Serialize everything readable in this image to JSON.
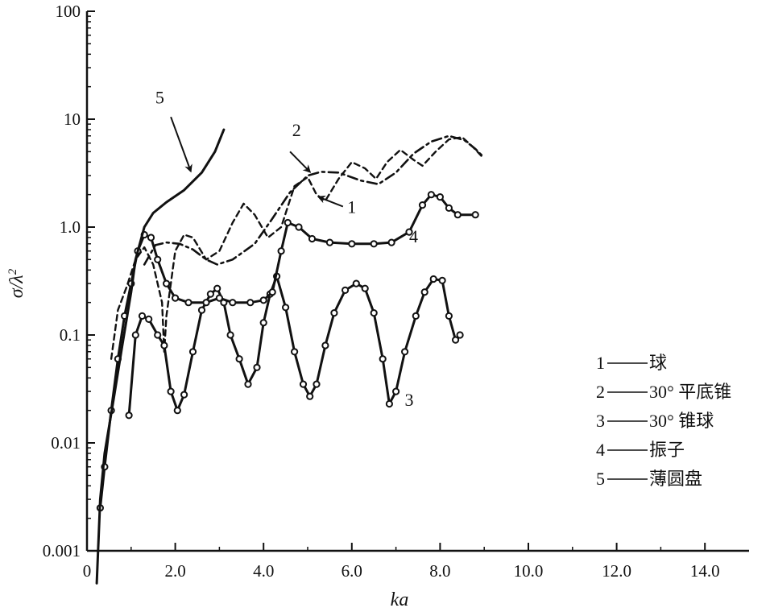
{
  "chart_data": {
    "type": "line",
    "title": "",
    "xlabel": "ka",
    "ylabel": "σ/λ²",
    "xscale": "linear",
    "yscale": "log",
    "xlim": [
      0,
      15
    ],
    "ylim": [
      0.001,
      100
    ],
    "grid": false,
    "x_ticks": [
      0,
      2,
      4,
      6,
      8,
      10,
      12,
      14
    ],
    "x_tick_labels": [
      "0",
      "2.0",
      "4.0",
      "6.0",
      "8.0",
      "10.0",
      "12.0",
      "14.0"
    ],
    "y_ticks": [
      0.001,
      0.01,
      0.1,
      1,
      10,
      100
    ],
    "y_tick_labels": [
      "0.001",
      "0.01",
      "0.1",
      "1.0",
      "10",
      "100"
    ],
    "legend_position": "right",
    "series": [
      {
        "name": "1——球",
        "label": "1",
        "style": "dashed",
        "color": "#111111",
        "points": [
          [
            0.55,
            0.06
          ],
          [
            0.7,
            0.17
          ],
          [
            0.9,
            0.28
          ],
          [
            1.1,
            0.5
          ],
          [
            1.3,
            0.65
          ],
          [
            1.5,
            0.45
          ],
          [
            1.7,
            0.2
          ],
          [
            1.75,
            0.07
          ],
          [
            1.8,
            0.15
          ],
          [
            2.0,
            0.6
          ],
          [
            2.2,
            0.85
          ],
          [
            2.4,
            0.8
          ],
          [
            2.7,
            0.5
          ],
          [
            3.0,
            0.6
          ],
          [
            3.3,
            1.1
          ],
          [
            3.55,
            1.65
          ],
          [
            3.8,
            1.3
          ],
          [
            4.1,
            0.8
          ],
          [
            4.4,
            1.0
          ],
          [
            4.7,
            2.4
          ],
          [
            5.0,
            2.9
          ],
          [
            5.2,
            2.0
          ],
          [
            5.4,
            1.75
          ],
          [
            5.7,
            2.8
          ],
          [
            6.0,
            4.0
          ],
          [
            6.3,
            3.5
          ],
          [
            6.55,
            2.8
          ],
          [
            6.8,
            4.0
          ],
          [
            7.1,
            5.2
          ],
          [
            7.4,
            4.2
          ],
          [
            7.6,
            3.7
          ],
          [
            7.9,
            5.0
          ],
          [
            8.2,
            6.5
          ],
          [
            8.5,
            6.8
          ],
          [
            8.75,
            5.5
          ],
          [
            8.95,
            4.5
          ]
        ]
      },
      {
        "name": "2——30° 平底锥",
        "label": "2",
        "style": "dash-dot",
        "color": "#111111",
        "points": [
          [
            1.3,
            0.45
          ],
          [
            1.55,
            0.68
          ],
          [
            1.8,
            0.72
          ],
          [
            2.1,
            0.7
          ],
          [
            2.4,
            0.62
          ],
          [
            2.7,
            0.5
          ],
          [
            2.95,
            0.45
          ],
          [
            3.3,
            0.5
          ],
          [
            3.8,
            0.7
          ],
          [
            4.2,
            1.2
          ],
          [
            4.6,
            2.1
          ],
          [
            5.0,
            3.0
          ],
          [
            5.3,
            3.25
          ],
          [
            5.7,
            3.2
          ],
          [
            6.2,
            2.7
          ],
          [
            6.6,
            2.5
          ],
          [
            7.0,
            3.2
          ],
          [
            7.4,
            4.8
          ],
          [
            7.8,
            6.2
          ],
          [
            8.2,
            7.0
          ],
          [
            8.55,
            6.4
          ],
          [
            8.8,
            5.3
          ],
          [
            8.95,
            4.6
          ]
        ]
      },
      {
        "name": "3——30° 锥球",
        "label": "3",
        "style": "solid-circles",
        "color": "#111111",
        "points": [
          [
            0.95,
            0.018
          ],
          [
            1.1,
            0.1
          ],
          [
            1.25,
            0.15
          ],
          [
            1.4,
            0.14
          ],
          [
            1.6,
            0.1
          ],
          [
            1.75,
            0.08
          ],
          [
            1.9,
            0.03
          ],
          [
            2.05,
            0.02
          ],
          [
            2.2,
            0.028
          ],
          [
            2.4,
            0.07
          ],
          [
            2.6,
            0.17
          ],
          [
            2.8,
            0.24
          ],
          [
            2.95,
            0.27
          ],
          [
            3.1,
            0.2
          ],
          [
            3.25,
            0.1
          ],
          [
            3.45,
            0.06
          ],
          [
            3.65,
            0.035
          ],
          [
            3.85,
            0.05
          ],
          [
            4.0,
            0.13
          ],
          [
            4.15,
            0.24
          ],
          [
            4.3,
            0.35
          ],
          [
            4.5,
            0.18
          ],
          [
            4.7,
            0.07
          ],
          [
            4.9,
            0.035
          ],
          [
            5.05,
            0.027
          ],
          [
            5.2,
            0.035
          ],
          [
            5.4,
            0.08
          ],
          [
            5.6,
            0.16
          ],
          [
            5.85,
            0.26
          ],
          [
            6.1,
            0.3
          ],
          [
            6.3,
            0.27
          ],
          [
            6.5,
            0.16
          ],
          [
            6.7,
            0.06
          ],
          [
            6.85,
            0.023
          ],
          [
            7.0,
            0.03
          ],
          [
            7.2,
            0.07
          ],
          [
            7.45,
            0.15
          ],
          [
            7.65,
            0.25
          ],
          [
            7.85,
            0.33
          ],
          [
            8.05,
            0.32
          ],
          [
            8.2,
            0.15
          ],
          [
            8.35,
            0.09
          ],
          [
            8.45,
            0.1
          ]
        ]
      },
      {
        "name": "4—— 振子",
        "label": "4",
        "style": "solid-circles",
        "color": "#111111",
        "points": [
          [
            0.3,
            0.0025
          ],
          [
            0.4,
            0.006
          ],
          [
            0.55,
            0.02
          ],
          [
            0.7,
            0.06
          ],
          [
            0.85,
            0.15
          ],
          [
            1.0,
            0.3
          ],
          [
            1.15,
            0.6
          ],
          [
            1.3,
            0.85
          ],
          [
            1.45,
            0.8
          ],
          [
            1.6,
            0.5
          ],
          [
            1.8,
            0.3
          ],
          [
            2.0,
            0.22
          ],
          [
            2.3,
            0.2
          ],
          [
            2.7,
            0.2
          ],
          [
            3.0,
            0.22
          ],
          [
            3.3,
            0.2
          ],
          [
            3.7,
            0.2
          ],
          [
            4.0,
            0.21
          ],
          [
            4.2,
            0.25
          ],
          [
            4.4,
            0.6
          ],
          [
            4.55,
            1.1
          ],
          [
            4.8,
            1.0
          ],
          [
            5.1,
            0.78
          ],
          [
            5.5,
            0.72
          ],
          [
            6.0,
            0.7
          ],
          [
            6.5,
            0.7
          ],
          [
            6.9,
            0.72
          ],
          [
            7.3,
            0.9
          ],
          [
            7.6,
            1.6
          ],
          [
            7.8,
            2.0
          ],
          [
            8.0,
            1.9
          ],
          [
            8.2,
            1.5
          ],
          [
            8.4,
            1.3
          ],
          [
            8.8,
            1.3
          ]
        ]
      },
      {
        "name": "5——薄圆盘",
        "label": "5",
        "style": "solid",
        "color": "#111111",
        "points": [
          [
            0.22,
            0.0005
          ],
          [
            0.3,
            0.003
          ],
          [
            0.4,
            0.008
          ],
          [
            0.6,
            0.025
          ],
          [
            0.8,
            0.08
          ],
          [
            1.0,
            0.25
          ],
          [
            1.1,
            0.5
          ],
          [
            1.3,
            1.0
          ],
          [
            1.5,
            1.35
          ],
          [
            1.8,
            1.7
          ],
          [
            2.2,
            2.2
          ],
          [
            2.6,
            3.2
          ],
          [
            2.9,
            5.0
          ],
          [
            3.1,
            8.0
          ]
        ]
      }
    ],
    "labels": [
      {
        "text": "5",
        "x": 1.65,
        "y": 14.0
      },
      {
        "text": "2",
        "x": 4.75,
        "y": 7.0
      },
      {
        "text": "1",
        "x": 6.0,
        "y": 1.35
      },
      {
        "text": "4",
        "x": 7.4,
        "y": 0.72
      },
      {
        "text": "3",
        "x": 7.3,
        "y": 0.022
      }
    ],
    "arrows": [
      {
        "from": [
          1.9,
          10.5
        ],
        "to": [
          2.35,
          3.3
        ]
      },
      {
        "from": [
          4.6,
          5.0
        ],
        "to": [
          5.05,
          3.25
        ]
      },
      {
        "from": [
          5.8,
          1.55
        ],
        "to": [
          5.25,
          1.9
        ]
      }
    ],
    "legend": [
      {
        "num": "1",
        "text": "球"
      },
      {
        "num": "2",
        "text": "30° 平底锥"
      },
      {
        "num": "3",
        "text": "30° 锥球"
      },
      {
        "num": "4",
        "text": " 振子"
      },
      {
        "num": "5",
        "text": "薄圆盘"
      }
    ]
  }
}
